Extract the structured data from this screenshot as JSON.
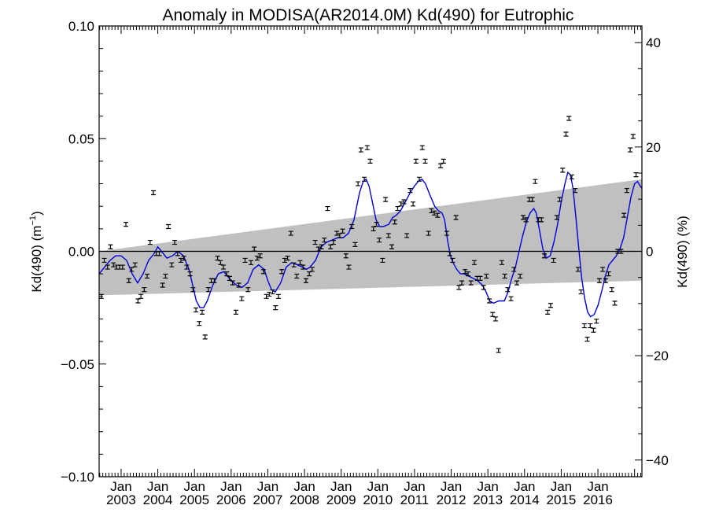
{
  "chart_data": {
    "type": "scatter",
    "title": "Anomaly in MODISA(AR2014.0M) Kd(490) for Eutrophic",
    "ylabel_left": "Kd(490) (m",
    "ylabel_left_sup": "−1",
    "ylabel_left_end": ")",
    "ylabel_right": "Kd(490) (%)",
    "xlim": [
      2002.4,
      2017.2
    ],
    "ylim": [
      -0.1,
      0.1
    ],
    "ylim_right": [
      -43.2,
      43.2
    ],
    "yticks": [
      {
        "value": 0.1,
        "label": "0.10"
      },
      {
        "value": 0.05,
        "label": "0.05"
      },
      {
        "value": 0.0,
        "label": "0.00"
      },
      {
        "value": -0.05,
        "label": "−0.05"
      },
      {
        "value": -0.1,
        "label": "−0.10"
      }
    ],
    "yticks_right": [
      {
        "value": 40,
        "label": "40"
      },
      {
        "value": 20,
        "label": "20"
      },
      {
        "value": 0,
        "label": "0"
      },
      {
        "value": -20,
        "label": "−20"
      },
      {
        "value": -40,
        "label": "−40"
      }
    ],
    "xticks": [
      {
        "value": 2003.0,
        "top": "Jan",
        "bottom": "2003"
      },
      {
        "value": 2004.0,
        "top": "Jan",
        "bottom": "2004"
      },
      {
        "value": 2005.0,
        "top": "Jan",
        "bottom": "2005"
      },
      {
        "value": 2006.0,
        "top": "Jan",
        "bottom": "2006"
      },
      {
        "value": 2007.0,
        "top": "Jan",
        "bottom": "2007"
      },
      {
        "value": 2008.0,
        "top": "Jan",
        "bottom": "2008"
      },
      {
        "value": 2009.0,
        "top": "Jan",
        "bottom": "2009"
      },
      {
        "value": 2010.0,
        "top": "Jan",
        "bottom": "2010"
      },
      {
        "value": 2011.0,
        "top": "Jan",
        "bottom": "2011"
      },
      {
        "value": 2012.0,
        "top": "Jan",
        "bottom": "2012"
      },
      {
        "value": 2013.0,
        "top": "Jan",
        "bottom": "2013"
      },
      {
        "value": 2014.0,
        "top": "Jan",
        "bottom": "2014"
      },
      {
        "value": 2015.0,
        "top": "Jan",
        "bottom": "2015"
      },
      {
        "value": 2016.0,
        "top": "Jan",
        "bottom": "2016"
      }
    ],
    "trend_band": {
      "start": {
        "x": 2002.4,
        "upper": 0.0,
        "lower": -0.0195
      },
      "end": {
        "x": 2017.2,
        "upper": 0.032,
        "lower": -0.013
      }
    },
    "colors": {
      "band": "#c0c0c0",
      "smoothed": "#0000dd",
      "points": "#000000",
      "zero": "#000000"
    },
    "points": [
      [
        2002.46,
        -0.02
      ],
      [
        2002.54,
        -0.004
      ],
      [
        2002.63,
        -0.007
      ],
      [
        2002.71,
        0.002
      ],
      [
        2002.79,
        -0.006
      ],
      [
        2002.88,
        -0.007
      ],
      [
        2002.96,
        -0.007
      ],
      [
        2003.04,
        -0.007
      ],
      [
        2003.13,
        0.012
      ],
      [
        2003.21,
        -0.013
      ],
      [
        2003.29,
        -0.008
      ],
      [
        2003.38,
        -0.006
      ],
      [
        2003.46,
        -0.022
      ],
      [
        2003.54,
        -0.02
      ],
      [
        2003.63,
        -0.017
      ],
      [
        2003.71,
        -0.011
      ],
      [
        2003.79,
        0.004
      ],
      [
        2003.88,
        0.026
      ],
      [
        2003.96,
        -0.001
      ],
      [
        2004.04,
        -0.001
      ],
      [
        2004.13,
        -0.015
      ],
      [
        2004.21,
        -0.011
      ],
      [
        2004.29,
        0.011
      ],
      [
        2004.38,
        -0.006
      ],
      [
        2004.46,
        0.004
      ],
      [
        2004.54,
        -0.001
      ],
      [
        2004.63,
        -0.004
      ],
      [
        2004.71,
        -0.003
      ],
      [
        2004.79,
        -0.007
      ],
      [
        2004.88,
        -0.01
      ],
      [
        2004.96,
        -0.017
      ],
      [
        2005.04,
        -0.026
      ],
      [
        2005.13,
        -0.032
      ],
      [
        2005.21,
        -0.027
      ],
      [
        2005.29,
        -0.038
      ],
      [
        2005.38,
        -0.017
      ],
      [
        2005.46,
        -0.013
      ],
      [
        2005.54,
        -0.013
      ],
      [
        2005.63,
        -0.003
      ],
      [
        2005.71,
        -0.005
      ],
      [
        2005.79,
        -0.007
      ],
      [
        2005.88,
        -0.01
      ],
      [
        2005.96,
        -0.012
      ],
      [
        2006.04,
        -0.014
      ],
      [
        2006.13,
        -0.027
      ],
      [
        2006.21,
        -0.015
      ],
      [
        2006.29,
        -0.021
      ],
      [
        2006.38,
        -0.004
      ],
      [
        2006.46,
        -0.017
      ],
      [
        2006.54,
        -0.005
      ],
      [
        2006.63,
        0.001
      ],
      [
        2006.71,
        -0.003
      ],
      [
        2006.79,
        -0.002
      ],
      [
        2006.88,
        -0.009
      ],
      [
        2006.96,
        -0.02
      ],
      [
        2007.04,
        -0.019
      ],
      [
        2007.13,
        -0.018
      ],
      [
        2007.21,
        -0.025
      ],
      [
        2007.29,
        -0.02
      ],
      [
        2007.38,
        -0.009
      ],
      [
        2007.46,
        -0.004
      ],
      [
        2007.54,
        -0.003
      ],
      [
        2007.63,
        0.008
      ],
      [
        2007.71,
        -0.006
      ],
      [
        2007.79,
        -0.011
      ],
      [
        2007.88,
        -0.005
      ],
      [
        2007.96,
        -0.007
      ],
      [
        2008.04,
        -0.013
      ],
      [
        2008.13,
        -0.01
      ],
      [
        2008.21,
        -0.008
      ],
      [
        2008.29,
        0.004
      ],
      [
        2008.38,
        0.001
      ],
      [
        2008.46,
        0.002
      ],
      [
        2008.54,
        0.005
      ],
      [
        2008.63,
        0.019
      ],
      [
        2008.71,
        0.002
      ],
      [
        2008.79,
        0.004
      ],
      [
        2008.88,
        0.008
      ],
      [
        2008.96,
        0.007
      ],
      [
        2009.04,
        0.009
      ],
      [
        2009.13,
        -0.002
      ],
      [
        2009.21,
        -0.007
      ],
      [
        2009.29,
        0.011
      ],
      [
        2009.38,
        0.003
      ],
      [
        2009.46,
        0.03
      ],
      [
        2009.54,
        0.045
      ],
      [
        2009.63,
        0.032
      ],
      [
        2009.71,
        0.046
      ],
      [
        2009.79,
        0.04
      ],
      [
        2009.88,
        0.01
      ],
      [
        2009.96,
        0.012
      ],
      [
        2010.04,
        0.005
      ],
      [
        2010.13,
        -0.004
      ],
      [
        2010.21,
        0.023
      ],
      [
        2010.29,
        0.007
      ],
      [
        2010.38,
        0.002
      ],
      [
        2010.46,
        0.013
      ],
      [
        2010.54,
        0.019
      ],
      [
        2010.63,
        0.021
      ],
      [
        2010.71,
        0.022
      ],
      [
        2010.79,
        0.007
      ],
      [
        2010.88,
        0.027
      ],
      [
        2010.96,
        0.021
      ],
      [
        2011.04,
        0.04
      ],
      [
        2011.13,
        0.032
      ],
      [
        2011.21,
        0.046
      ],
      [
        2011.29,
        0.04
      ],
      [
        2011.38,
        0.008
      ],
      [
        2011.46,
        0.018
      ],
      [
        2011.54,
        0.017
      ],
      [
        2011.63,
        0.016
      ],
      [
        2011.71,
        0.038
      ],
      [
        2011.79,
        0.04
      ],
      [
        2011.88,
        0.008
      ],
      [
        2011.96,
        -0.001
      ],
      [
        2012.04,
        -0.004
      ],
      [
        2012.13,
        0.015
      ],
      [
        2012.21,
        -0.016
      ],
      [
        2012.29,
        -0.014
      ],
      [
        2012.38,
        -0.009
      ],
      [
        2012.46,
        -0.01
      ],
      [
        2012.54,
        -0.014
      ],
      [
        2012.63,
        -0.005
      ],
      [
        2012.71,
        -0.012
      ],
      [
        2012.79,
        -0.012
      ],
      [
        2012.88,
        -0.016
      ],
      [
        2012.96,
        -0.011
      ],
      [
        2013.04,
        -0.022
      ],
      [
        2013.13,
        -0.028
      ],
      [
        2013.21,
        -0.03
      ],
      [
        2013.29,
        -0.044
      ],
      [
        2013.38,
        -0.005
      ],
      [
        2013.46,
        -0.011
      ],
      [
        2013.54,
        -0.017
      ],
      [
        2013.63,
        -0.021
      ],
      [
        2013.71,
        -0.008
      ],
      [
        2013.79,
        -0.014
      ],
      [
        2013.88,
        -0.011
      ],
      [
        2013.96,
        0.015
      ],
      [
        2014.04,
        0.014
      ],
      [
        2014.13,
        0.023
      ],
      [
        2014.21,
        0.023
      ],
      [
        2014.29,
        0.031
      ],
      [
        2014.38,
        0.014
      ],
      [
        2014.46,
        0.014
      ],
      [
        2014.54,
        -0.002
      ],
      [
        2014.63,
        -0.027
      ],
      [
        2014.71,
        -0.024
      ],
      [
        2014.79,
        -0.004
      ],
      [
        2014.88,
        0.015
      ],
      [
        2014.96,
        0.023
      ],
      [
        2015.04,
        0.036
      ],
      [
        2015.13,
        0.052
      ],
      [
        2015.21,
        0.059
      ],
      [
        2015.29,
        0.033
      ],
      [
        2015.38,
        0.027
      ],
      [
        2015.46,
        -0.008
      ],
      [
        2015.54,
        -0.018
      ],
      [
        2015.63,
        -0.033
      ],
      [
        2015.71,
        -0.039
      ],
      [
        2015.79,
        -0.033
      ],
      [
        2015.88,
        -0.035
      ],
      [
        2015.96,
        -0.031
      ],
      [
        2016.04,
        -0.013
      ],
      [
        2016.13,
        -0.008
      ],
      [
        2016.21,
        -0.013
      ],
      [
        2016.29,
        -0.01
      ],
      [
        2016.38,
        -0.017
      ],
      [
        2016.46,
        -0.023
      ],
      [
        2016.54,
        0.0
      ],
      [
        2016.63,
        0.0
      ],
      [
        2016.71,
        0.016
      ],
      [
        2016.79,
        0.027
      ],
      [
        2016.88,
        0.045
      ],
      [
        2016.96,
        0.051
      ],
      [
        2017.04,
        0.034
      ]
    ],
    "smoothed": [
      [
        2002.4,
        -0.01
      ],
      [
        2002.55,
        -0.007
      ],
      [
        2002.7,
        -0.004
      ],
      [
        2002.85,
        -0.002
      ],
      [
        2003.0,
        -0.002
      ],
      [
        2003.15,
        -0.004
      ],
      [
        2003.3,
        -0.01
      ],
      [
        2003.45,
        -0.014
      ],
      [
        2003.6,
        -0.01
      ],
      [
        2003.75,
        -0.004
      ],
      [
        2003.9,
        -0.001
      ],
      [
        2004.0,
        0.002
      ],
      [
        2004.1,
        0.0
      ],
      [
        2004.25,
        -0.003
      ],
      [
        2004.4,
        -0.002
      ],
      [
        2004.55,
        0.0
      ],
      [
        2004.7,
        -0.002
      ],
      [
        2004.85,
        -0.008
      ],
      [
        2004.95,
        -0.015
      ],
      [
        2005.05,
        -0.022
      ],
      [
        2005.15,
        -0.025
      ],
      [
        2005.25,
        -0.025
      ],
      [
        2005.35,
        -0.022
      ],
      [
        2005.5,
        -0.015
      ],
      [
        2005.65,
        -0.01
      ],
      [
        2005.8,
        -0.009
      ],
      [
        2005.9,
        -0.011
      ],
      [
        2006.0,
        -0.013
      ],
      [
        2006.15,
        -0.015
      ],
      [
        2006.3,
        -0.016
      ],
      [
        2006.45,
        -0.014
      ],
      [
        2006.6,
        -0.008
      ],
      [
        2006.75,
        -0.006
      ],
      [
        2006.9,
        -0.008
      ],
      [
        2007.0,
        -0.013
      ],
      [
        2007.1,
        -0.017
      ],
      [
        2007.2,
        -0.018
      ],
      [
        2007.35,
        -0.014
      ],
      [
        2007.5,
        -0.007
      ],
      [
        2007.65,
        -0.005
      ],
      [
        2007.8,
        -0.006
      ],
      [
        2007.95,
        -0.007
      ],
      [
        2008.05,
        -0.008
      ],
      [
        2008.15,
        -0.007
      ],
      [
        2008.3,
        -0.004
      ],
      [
        2008.45,
        0.002
      ],
      [
        2008.6,
        0.004
      ],
      [
        2008.75,
        0.005
      ],
      [
        2008.9,
        0.006
      ],
      [
        2009.05,
        0.006
      ],
      [
        2009.2,
        0.008
      ],
      [
        2009.35,
        0.014
      ],
      [
        2009.5,
        0.026
      ],
      [
        2009.6,
        0.031
      ],
      [
        2009.68,
        0.032
      ],
      [
        2009.76,
        0.029
      ],
      [
        2009.85,
        0.022
      ],
      [
        2009.95,
        0.014
      ],
      [
        2010.05,
        0.011
      ],
      [
        2010.15,
        0.011
      ],
      [
        2010.3,
        0.012
      ],
      [
        2010.4,
        0.015
      ],
      [
        2010.5,
        0.016
      ],
      [
        2010.62,
        0.018
      ],
      [
        2010.75,
        0.022
      ],
      [
        2010.88,
        0.026
      ],
      [
        2011.0,
        0.029
      ],
      [
        2011.1,
        0.031
      ],
      [
        2011.2,
        0.032
      ],
      [
        2011.3,
        0.03
      ],
      [
        2011.42,
        0.025
      ],
      [
        2011.55,
        0.02
      ],
      [
        2011.65,
        0.018
      ],
      [
        2011.75,
        0.017
      ],
      [
        2011.82,
        0.014
      ],
      [
        2011.9,
        0.005
      ],
      [
        2011.98,
        -0.002
      ],
      [
        2012.05,
        -0.005
      ],
      [
        2012.15,
        -0.008
      ],
      [
        2012.25,
        -0.01
      ],
      [
        2012.35,
        -0.01
      ],
      [
        2012.48,
        -0.011
      ],
      [
        2012.6,
        -0.012
      ],
      [
        2012.72,
        -0.013
      ],
      [
        2012.85,
        -0.015
      ],
      [
        2012.95,
        -0.018
      ],
      [
        2013.05,
        -0.022
      ],
      [
        2013.15,
        -0.023
      ],
      [
        2013.3,
        -0.022
      ],
      [
        2013.45,
        -0.022
      ],
      [
        2013.55,
        -0.018
      ],
      [
        2013.65,
        -0.012
      ],
      [
        2013.75,
        -0.007
      ],
      [
        2013.85,
        0.0
      ],
      [
        2013.95,
        0.007
      ],
      [
        2014.05,
        0.013
      ],
      [
        2014.15,
        0.017
      ],
      [
        2014.25,
        0.019
      ],
      [
        2014.32,
        0.017
      ],
      [
        2014.4,
        0.01
      ],
      [
        2014.5,
        0.001
      ],
      [
        2014.6,
        -0.003
      ],
      [
        2014.7,
        -0.002
      ],
      [
        2014.8,
        0.004
      ],
      [
        2014.9,
        0.012
      ],
      [
        2015.0,
        0.022
      ],
      [
        2015.1,
        0.03
      ],
      [
        2015.18,
        0.035
      ],
      [
        2015.25,
        0.034
      ],
      [
        2015.32,
        0.028
      ],
      [
        2015.4,
        0.015
      ],
      [
        2015.48,
        0.001
      ],
      [
        2015.56,
        -0.012
      ],
      [
        2015.64,
        -0.021
      ],
      [
        2015.72,
        -0.027
      ],
      [
        2015.8,
        -0.029
      ],
      [
        2015.9,
        -0.028
      ],
      [
        2016.0,
        -0.024
      ],
      [
        2016.1,
        -0.018
      ],
      [
        2016.2,
        -0.011
      ],
      [
        2016.3,
        -0.006
      ],
      [
        2016.4,
        -0.004
      ],
      [
        2016.5,
        -0.002
      ],
      [
        2016.6,
        0.001
      ],
      [
        2016.7,
        0.006
      ],
      [
        2016.8,
        0.015
      ],
      [
        2016.9,
        0.024
      ],
      [
        2017.0,
        0.03
      ],
      [
        2017.08,
        0.031
      ],
      [
        2017.15,
        0.029
      ],
      [
        2017.2,
        0.028
      ]
    ]
  }
}
